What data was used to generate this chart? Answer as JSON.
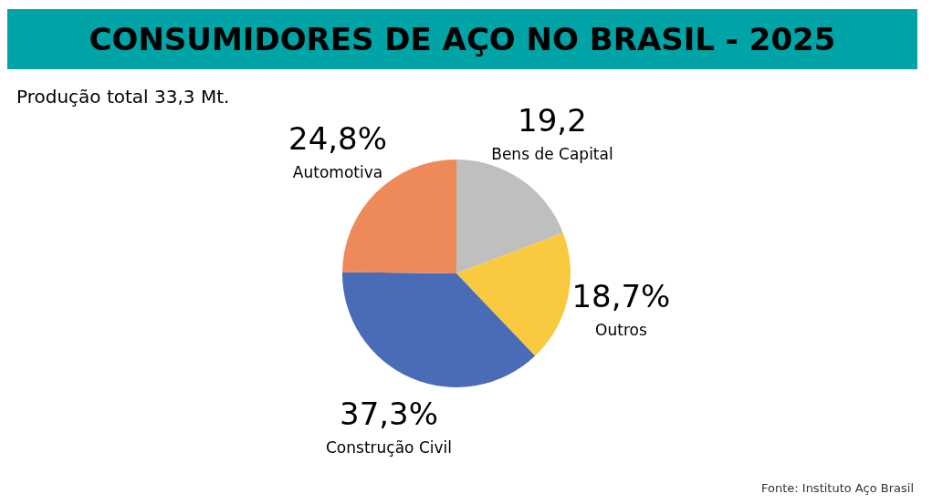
{
  "chart_data": {
    "type": "pie",
    "title": "CONSUMIDORES DE AÇO NO BRASIL - 2025",
    "subtitle": "Produção total 33,3 Mt.",
    "categories": [
      "Bens de Capital",
      "Outros",
      "Construção Civil",
      "Automotiva"
    ],
    "values": [
      19.2,
      18.7,
      37.3,
      24.8
    ],
    "value_labels": [
      "19,2",
      "18,7%",
      "37,3%",
      "24,8%"
    ],
    "colors": [
      "#c0bfc0",
      "#f9c93f",
      "#4a6bb5",
      "#ee8a5a"
    ],
    "annotations": [
      "Fonte: Instituto Aço Brasil"
    ]
  }
}
